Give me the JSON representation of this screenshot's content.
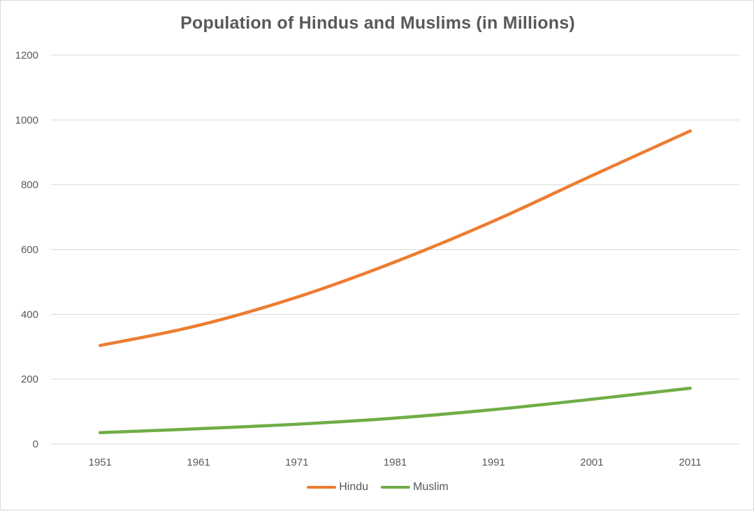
{
  "chart_data": {
    "type": "line",
    "title": "Population of Hindus and Muslims (in Millions)",
    "xlabel": "",
    "ylabel": "",
    "categories": [
      "1951",
      "1961",
      "1971",
      "1981",
      "1991",
      "2001",
      "2011"
    ],
    "ylim": [
      0,
      1200
    ],
    "yticks": [
      "0",
      "200",
      "400",
      "600",
      "800",
      "1000",
      "1200"
    ],
    "grid": true,
    "legend_position": "bottom",
    "series": [
      {
        "name": "Hindu",
        "color": "#ED7D31",
        "values": [
          304,
          366,
          453,
          562,
          688,
          828,
          966
        ]
      },
      {
        "name": "Muslim",
        "color": "#70AD47",
        "values": [
          35,
          47,
          61,
          80,
          106,
          138,
          172
        ]
      }
    ]
  }
}
